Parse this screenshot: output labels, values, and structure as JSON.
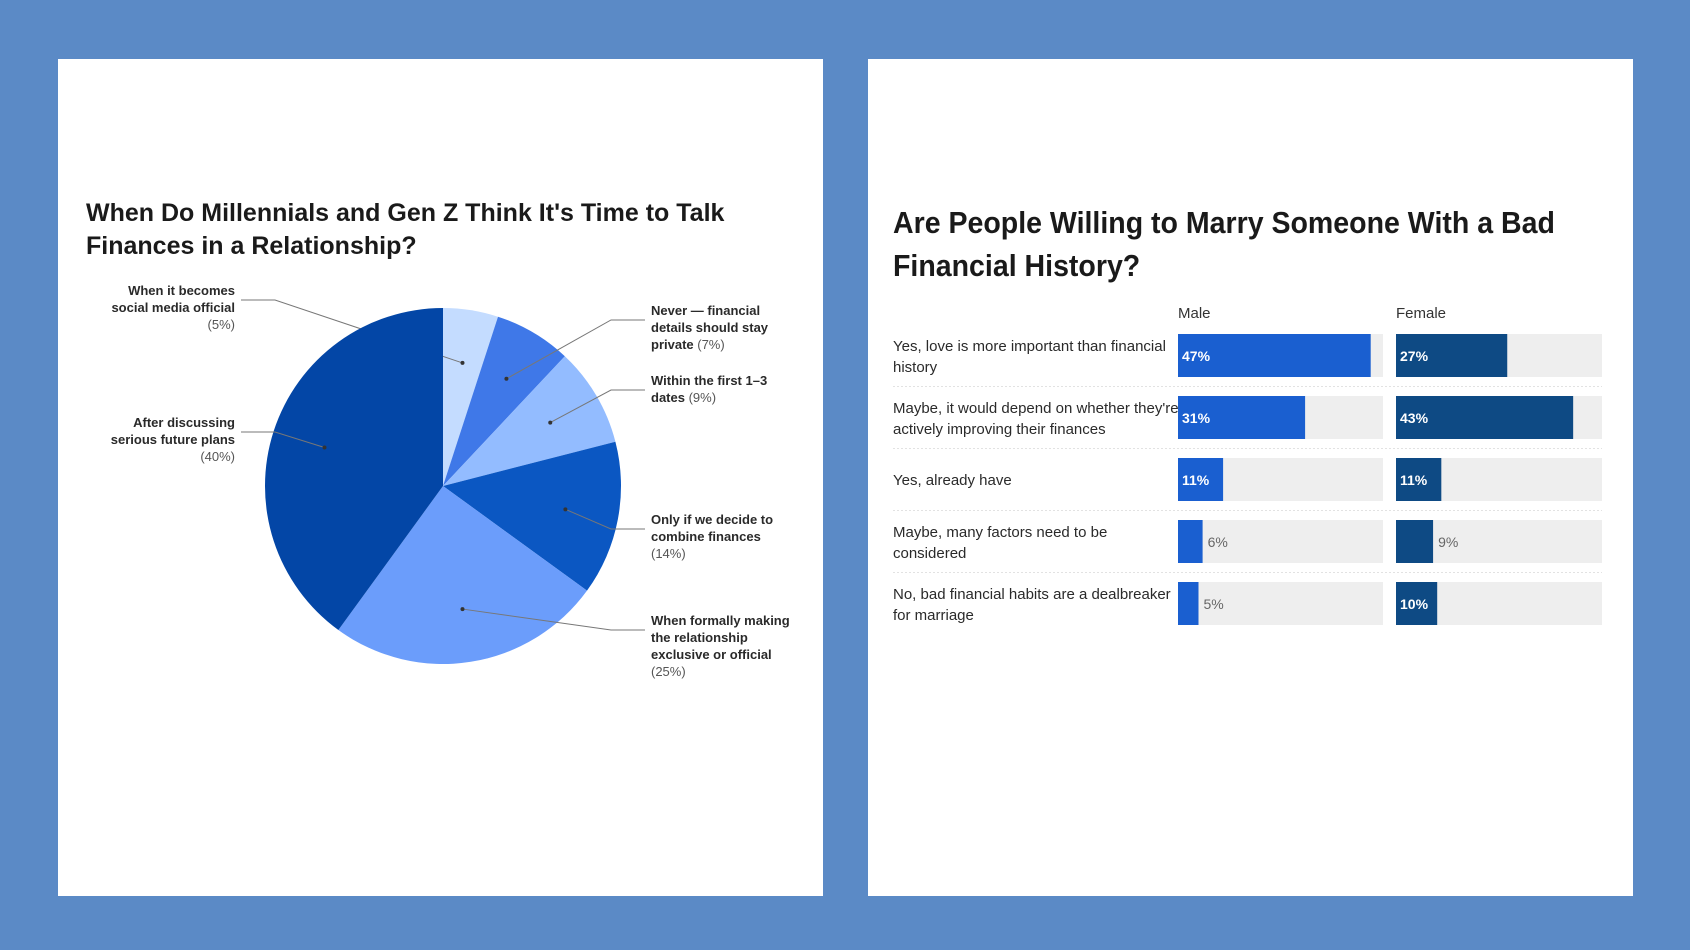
{
  "colors": {
    "background": "#5b8ac6",
    "panel": "#ffffff",
    "male_bar": "#1a5fd0",
    "female_bar": "#0e4a84",
    "track": "#eeeeee"
  },
  "chart_data": [
    {
      "type": "pie",
      "title": "When Do Millennials and Gen Z Think It's Time to Talk Finances in a Relationship?",
      "slices": [
        {
          "label": [
            "When it becomes",
            "social media official"
          ],
          "value": 5,
          "pct_text": "(5%)",
          "color": "#c4dcff"
        },
        {
          "label": [
            "Never — financial",
            "details should stay",
            "private"
          ],
          "value": 7,
          "pct_text": "(7%)",
          "color": "#3f78e8"
        },
        {
          "label": [
            "Within the first 1–3",
            "dates"
          ],
          "value": 9,
          "pct_text": "(9%)",
          "color": "#93bcff"
        },
        {
          "label": [
            "Only if we decide to",
            "combine finances"
          ],
          "value": 14,
          "pct_text": "(14%)",
          "color": "#0b57c2"
        },
        {
          "label": [
            "When formally making",
            "the relationship",
            "exclusive or official"
          ],
          "value": 25,
          "pct_text": "(25%)",
          "color": "#6b9dfb"
        },
        {
          "label": [
            "After discussing",
            "serious future plans"
          ],
          "value": 40,
          "pct_text": "(40%)",
          "color": "#0346a6"
        }
      ]
    },
    {
      "type": "bar",
      "title": "Are People Willing to Marry Someone With a Bad Financial History?",
      "series_names": [
        "Male",
        "Female"
      ],
      "xlim": [
        0,
        50
      ],
      "categories": [
        [
          "Yes, love is more important than financial",
          "history"
        ],
        [
          "Maybe, it would depend on whether they're",
          "actively improving their finances"
        ],
        [
          "Yes, already have"
        ],
        [
          "Maybe, many factors need to be",
          "considered"
        ],
        [
          "No, bad financial habits are a dealbreaker",
          "for marriage"
        ]
      ],
      "series": [
        {
          "name": "Male",
          "values": [
            47,
            31,
            11,
            6,
            5
          ],
          "labels": [
            "47%",
            "31%",
            "11%",
            "6%",
            "5%"
          ]
        },
        {
          "name": "Female",
          "values": [
            27,
            43,
            11,
            9,
            10
          ],
          "labels": [
            "27%",
            "43%",
            "11%",
            "9%",
            "10%"
          ]
        }
      ]
    }
  ]
}
